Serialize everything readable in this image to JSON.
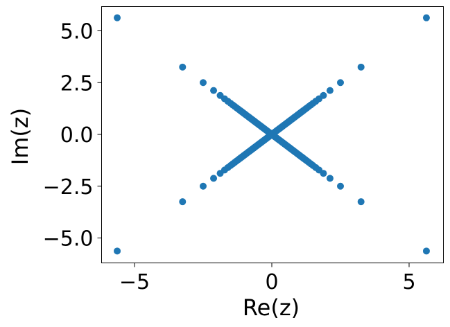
{
  "chart_data": {
    "type": "scatter",
    "title": "",
    "xlabel": "Re(z)",
    "ylabel": "Im(z)",
    "xlim": [
      -6.0,
      6.2
    ],
    "ylim": [
      -6.2,
      6.2
    ],
    "xticks": [
      -5,
      0,
      5
    ],
    "xtick_labels": [
      "−5",
      "0",
      "5"
    ],
    "yticks": [
      -5.0,
      -2.5,
      0.0,
      2.5,
      5.0
    ],
    "ytick_labels": [
      "−5.0",
      "−2.5",
      "0.0",
      "2.5",
      "5.0"
    ],
    "grid": false,
    "legend": "none",
    "marker_color": "#1f77b4",
    "points_per_quadrant": [
      [
        5.63,
        5.63
      ],
      [
        3.25,
        3.25
      ],
      [
        2.5,
        2.5
      ],
      [
        2.12,
        2.12
      ],
      [
        1.88,
        1.88
      ],
      [
        1.72,
        1.72
      ],
      [
        1.6,
        1.6
      ],
      [
        1.5,
        1.5
      ],
      [
        1.42,
        1.42
      ],
      [
        1.35,
        1.35
      ],
      [
        1.28,
        1.28
      ],
      [
        1.22,
        1.22
      ],
      [
        1.16,
        1.16
      ],
      [
        1.11,
        1.11
      ],
      [
        1.06,
        1.06
      ],
      [
        1.01,
        1.01
      ],
      [
        0.96,
        0.96
      ],
      [
        0.92,
        0.92
      ],
      [
        0.87,
        0.87
      ],
      [
        0.83,
        0.83
      ],
      [
        0.79,
        0.79
      ],
      [
        0.75,
        0.75
      ],
      [
        0.71,
        0.71
      ],
      [
        0.67,
        0.67
      ],
      [
        0.63,
        0.63
      ],
      [
        0.59,
        0.59
      ],
      [
        0.55,
        0.55
      ],
      [
        0.51,
        0.51
      ],
      [
        0.47,
        0.47
      ],
      [
        0.43,
        0.43
      ],
      [
        0.39,
        0.39
      ],
      [
        0.35,
        0.35
      ],
      [
        0.31,
        0.31
      ],
      [
        0.27,
        0.27
      ],
      [
        0.23,
        0.23
      ],
      [
        0.19,
        0.19
      ],
      [
        0.15,
        0.15
      ],
      [
        0.11,
        0.11
      ],
      [
        0.07,
        0.07
      ],
      [
        0.03,
        0.03
      ]
    ],
    "symmetry": "points mirrored into all four quadrants (x,y), (-x,y), (x,-y), (-x,-y)"
  }
}
